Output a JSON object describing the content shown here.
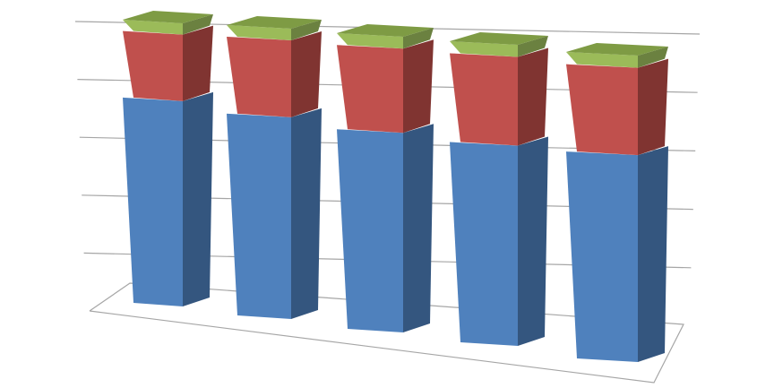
{
  "chart_data": {
    "type": "bar",
    "stacked": true,
    "three_d": true,
    "title": "",
    "xlabel": "",
    "ylabel": "",
    "categories": [
      "",
      "",
      "",
      "",
      ""
    ],
    "ylim": [
      0,
      100
    ],
    "grid": true,
    "legend": "none",
    "series": [
      {
        "color": "#4f81bd",
        "values": [
          72.5,
          69.5,
          67.5,
          66.5,
          67.5
        ]
      },
      {
        "color": "#c0504d",
        "values": [
          23.5,
          26.5,
          28.5,
          29.5,
          28.5
        ]
      },
      {
        "color": "#9bbb59",
        "values": [
          4.0,
          4.0,
          4.0,
          4.0,
          4.0
        ]
      }
    ]
  }
}
